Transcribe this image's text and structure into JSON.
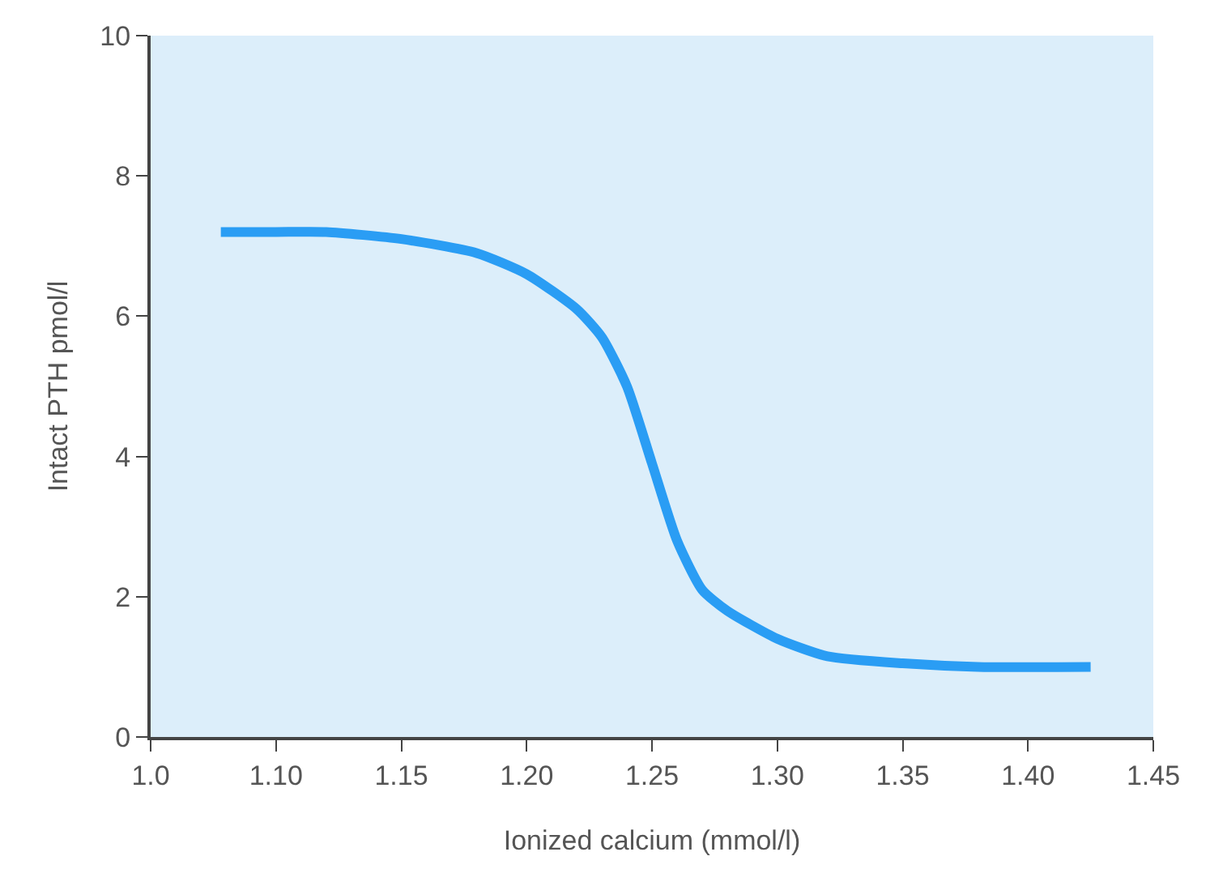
{
  "chart_data": {
    "type": "line",
    "xlabel": "Ionized calcium (mmol/l)",
    "ylabel": "Intact PTH pmol/l",
    "x": [
      1.078,
      1.1,
      1.12,
      1.15,
      1.18,
      1.2,
      1.22,
      1.23,
      1.24,
      1.25,
      1.26,
      1.27,
      1.28,
      1.3,
      1.32,
      1.35,
      1.38,
      1.425
    ],
    "series": [
      {
        "color": "#2a9df4",
        "values": [
          7.2,
          7.2,
          7.2,
          7.1,
          6.9,
          6.6,
          6.1,
          5.7,
          5.0,
          3.9,
          2.8,
          2.1,
          1.8,
          1.4,
          1.15,
          1.05,
          1.0,
          1.0
        ]
      }
    ],
    "xlim": [
      1.05,
      1.45
    ],
    "xticks": [
      {
        "value": 1.05,
        "label": "1.0"
      },
      {
        "value": 1.1,
        "label": "1.10"
      },
      1.15,
      {
        "value": 1.2,
        "label": "1.20"
      },
      1.25,
      {
        "value": 1.3,
        "label": "1.30"
      },
      1.35,
      {
        "value": 1.4,
        "label": "1.40"
      },
      1.45
    ],
    "ylim": [
      0,
      10
    ],
    "yticks": [
      0,
      2,
      4,
      6,
      8,
      10
    ],
    "grid": false,
    "legend": false,
    "marker": "none",
    "line_style": "solid"
  }
}
